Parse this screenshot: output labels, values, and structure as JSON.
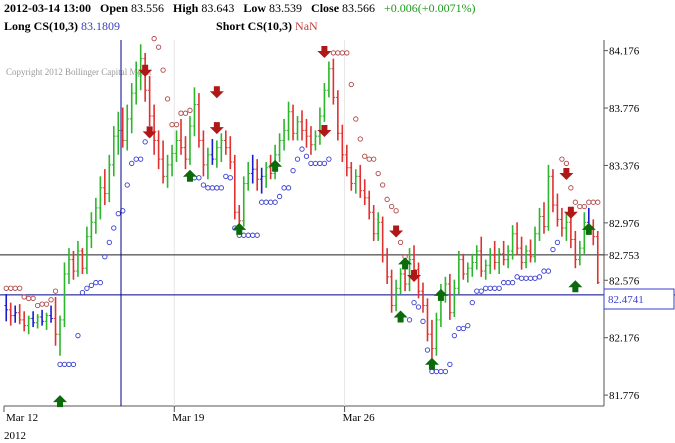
{
  "header": {
    "datetime": "2012-03-14 13:00",
    "open_label": "Open",
    "open_value": "83.556",
    "high_label": "High",
    "high_value": "83.643",
    "low_label": "Low",
    "low_value": "83.539",
    "close_label": "Close",
    "close_value": "83.566",
    "change": "+0.006(+0.0071%)",
    "long_label": "Long CS(10,3)",
    "long_value": "83.1809",
    "short_label": "Short CS(10,3)",
    "short_value": "NaN"
  },
  "watermark": "Copyright 2012 Bollinger Capital Mgmt",
  "y_ticks": [
    "84.176",
    "83.776",
    "83.376",
    "82.976",
    "82.753",
    "82.576",
    "82.176",
    "81.776"
  ],
  "x_ticks": [
    "Mar 12",
    "Mar 19",
    "Mar 26"
  ],
  "year_label": "2012",
  "current_price_label": "82.4741",
  "colors": {
    "bar_up": "#2db52d",
    "bar_down": "#e03030",
    "bar_neutral": "#1a1ad0",
    "long_stop_dots": "#3a3fcf",
    "short_stop_dots": "#b04848",
    "buy_arrow": "#0b6b0b",
    "sell_arrow": "#b01818",
    "crosshair": "#00008b"
  },
  "chart_data": {
    "type": "ohlc",
    "y_range": [
      81.7,
      84.25
    ],
    "horizontal_lines": [
      82.753,
      82.4741
    ],
    "bars": [
      [
        82.4,
        82.48,
        82.29,
        82.37
      ],
      [
        82.37,
        82.42,
        82.26,
        82.33
      ],
      [
        82.33,
        82.4,
        82.28,
        82.35
      ],
      [
        82.35,
        82.41,
        82.27,
        82.3
      ],
      [
        82.3,
        82.36,
        82.22,
        82.26
      ],
      [
        82.26,
        82.33,
        82.2,
        82.31
      ],
      [
        82.31,
        82.36,
        82.25,
        82.28
      ],
      [
        82.28,
        82.34,
        82.24,
        82.32
      ],
      [
        82.32,
        82.37,
        82.26,
        82.29
      ],
      [
        82.29,
        82.35,
        82.23,
        82.33
      ],
      [
        82.33,
        82.4,
        82.28,
        82.31
      ],
      [
        82.31,
        82.46,
        82.12,
        82.2
      ],
      [
        82.2,
        82.33,
        82.05,
        82.3
      ],
      [
        82.3,
        82.7,
        82.25,
        82.62
      ],
      [
        82.62,
        82.8,
        82.55,
        82.72
      ],
      [
        82.72,
        82.78,
        82.58,
        82.64
      ],
      [
        82.64,
        82.85,
        82.6,
        82.78
      ],
      [
        82.78,
        82.8,
        82.62,
        82.66
      ],
      [
        82.66,
        82.95,
        82.62,
        82.88
      ],
      [
        82.88,
        83.05,
        82.8,
        82.98
      ],
      [
        82.98,
        83.15,
        82.9,
        83.08
      ],
      [
        83.08,
        83.3,
        83.0,
        83.22
      ],
      [
        83.22,
        83.35,
        83.1,
        83.18
      ],
      [
        83.18,
        83.45,
        83.12,
        83.38
      ],
      [
        83.38,
        83.65,
        83.3,
        83.58
      ],
      [
        83.58,
        83.75,
        83.45,
        83.62
      ],
      [
        83.62,
        83.78,
        83.5,
        83.55
      ],
      [
        83.55,
        83.8,
        83.48,
        83.7
      ],
      [
        83.7,
        83.95,
        83.6,
        83.88
      ],
      [
        83.88,
        84.1,
        83.8,
        84.02
      ],
      [
        84.02,
        84.22,
        83.9,
        84.12
      ],
      [
        84.12,
        84.16,
        83.82,
        83.9
      ],
      [
        83.9,
        84.0,
        83.65,
        83.72
      ],
      [
        83.72,
        83.8,
        83.45,
        83.55
      ],
      [
        83.55,
        83.62,
        83.35,
        83.42
      ],
      [
        83.42,
        83.55,
        83.25,
        83.3
      ],
      [
        83.3,
        83.45,
        83.22,
        83.38
      ],
      [
        83.38,
        83.52,
        83.3,
        83.46
      ],
      [
        83.46,
        83.62,
        83.4,
        83.55
      ],
      [
        83.55,
        83.7,
        83.45,
        83.5
      ],
      [
        83.5,
        83.58,
        83.35,
        83.42
      ],
      [
        83.42,
        83.72,
        83.38,
        83.65
      ],
      [
        83.65,
        83.92,
        83.58,
        83.8
      ],
      [
        83.8,
        83.88,
        83.5,
        83.55
      ],
      [
        83.55,
        83.62,
        83.3,
        83.38
      ],
      [
        83.38,
        83.5,
        83.28,
        83.45
      ],
      [
        83.45,
        83.56,
        83.38,
        83.42
      ],
      [
        83.42,
        83.55,
        83.36,
        83.5
      ],
      [
        83.5,
        83.6,
        83.4,
        83.55
      ],
      [
        83.55,
        83.62,
        83.45,
        83.5
      ],
      [
        83.5,
        83.58,
        83.35,
        83.4
      ],
      [
        83.4,
        83.45,
        83.0,
        83.05
      ],
      [
        83.05,
        83.1,
        82.95,
        82.99
      ],
      [
        82.99,
        83.3,
        82.95,
        83.25
      ],
      [
        83.25,
        83.4,
        83.2,
        83.32
      ],
      [
        83.32,
        83.45,
        83.25,
        83.35
      ],
      [
        83.35,
        83.42,
        83.2,
        83.28
      ],
      [
        83.28,
        83.36,
        83.18,
        83.3
      ],
      [
        83.3,
        83.4,
        83.22,
        83.36
      ],
      [
        83.36,
        83.45,
        83.28,
        83.32
      ],
      [
        83.32,
        83.52,
        83.28,
        83.45
      ],
      [
        83.45,
        83.6,
        83.4,
        83.55
      ],
      [
        83.55,
        83.7,
        83.48,
        83.62
      ],
      [
        83.62,
        83.82,
        83.55,
        83.75
      ],
      [
        83.75,
        83.8,
        83.55,
        83.6
      ],
      [
        83.6,
        83.72,
        83.55,
        83.68
      ],
      [
        83.68,
        83.76,
        83.55,
        83.62
      ],
      [
        83.62,
        83.7,
        83.5,
        83.58
      ],
      [
        83.58,
        83.65,
        83.45,
        83.52
      ],
      [
        83.52,
        83.62,
        83.48,
        83.58
      ],
      [
        83.58,
        83.78,
        83.52,
        83.72
      ],
      [
        83.72,
        83.95,
        83.68,
        83.9
      ],
      [
        83.9,
        84.1,
        83.85,
        84.05
      ],
      [
        84.05,
        84.12,
        83.8,
        83.85
      ],
      [
        83.85,
        83.9,
        83.55,
        83.6
      ],
      [
        83.6,
        83.66,
        83.4,
        83.45
      ],
      [
        83.45,
        83.52,
        83.3,
        83.36
      ],
      [
        83.36,
        83.4,
        83.2,
        83.25
      ],
      [
        83.25,
        83.35,
        83.18,
        83.3
      ],
      [
        83.3,
        83.38,
        83.15,
        83.2
      ],
      [
        83.2,
        83.28,
        83.1,
        83.15
      ],
      [
        83.15,
        83.2,
        83.0,
        83.05
      ],
      [
        83.05,
        83.1,
        82.85,
        82.9
      ],
      [
        82.9,
        83.05,
        82.85,
        82.98
      ],
      [
        82.98,
        83.02,
        82.7,
        82.75
      ],
      [
        82.75,
        82.8,
        82.55,
        82.6
      ],
      [
        82.6,
        82.65,
        82.35,
        82.4
      ],
      [
        82.4,
        82.58,
        82.36,
        82.52
      ],
      [
        82.52,
        82.66,
        82.48,
        82.62
      ],
      [
        82.62,
        82.7,
        82.5,
        82.55
      ],
      [
        82.55,
        82.8,
        82.5,
        82.72
      ],
      [
        82.72,
        82.82,
        82.6,
        82.65
      ],
      [
        82.65,
        82.7,
        82.45,
        82.5
      ],
      [
        82.5,
        82.56,
        82.35,
        82.4
      ],
      [
        82.4,
        82.45,
        82.15,
        82.2
      ],
      [
        82.2,
        82.3,
        82.0,
        82.1
      ],
      [
        82.1,
        82.35,
        82.05,
        82.3
      ],
      [
        82.3,
        82.55,
        82.25,
        82.48
      ],
      [
        82.48,
        82.6,
        82.42,
        82.55
      ],
      [
        82.55,
        82.62,
        82.3,
        82.35
      ],
      [
        82.35,
        82.58,
        82.32,
        82.52
      ],
      [
        82.52,
        82.78,
        82.48,
        82.72
      ],
      [
        82.72,
        82.76,
        82.58,
        82.62
      ],
      [
        82.62,
        82.7,
        82.56,
        82.66
      ],
      [
        82.66,
        82.76,
        82.6,
        82.7
      ],
      [
        82.7,
        82.82,
        82.65,
        82.78
      ],
      [
        82.78,
        82.88,
        82.6,
        82.64
      ],
      [
        82.64,
        82.72,
        82.58,
        82.68
      ],
      [
        82.68,
        82.8,
        82.62,
        82.75
      ],
      [
        82.75,
        82.85,
        82.65,
        82.7
      ],
      [
        82.7,
        82.8,
        82.62,
        82.76
      ],
      [
        82.76,
        82.85,
        82.68,
        82.72
      ],
      [
        82.72,
        82.82,
        82.66,
        82.78
      ],
      [
        82.78,
        82.96,
        82.72,
        82.9
      ],
      [
        82.9,
        82.98,
        82.75,
        82.8
      ],
      [
        82.8,
        82.88,
        82.65,
        82.7
      ],
      [
        82.7,
        82.82,
        82.66,
        82.78
      ],
      [
        82.78,
        82.86,
        82.7,
        82.74
      ],
      [
        82.74,
        82.95,
        82.7,
        82.9
      ],
      [
        82.9,
        83.08,
        82.85,
        83.02
      ],
      [
        83.02,
        83.12,
        82.9,
        82.95
      ],
      [
        82.95,
        83.38,
        82.92,
        83.3
      ],
      [
        83.3,
        83.35,
        83.05,
        83.1
      ],
      [
        83.1,
        83.18,
        82.95,
        83.0
      ],
      [
        83.0,
        83.08,
        82.88,
        82.94
      ],
      [
        82.94,
        83.05,
        82.85,
        82.98
      ],
      [
        82.98,
        83.02,
        82.8,
        82.86
      ],
      [
        82.86,
        82.92,
        82.66,
        82.72
      ],
      [
        82.72,
        82.85,
        82.68,
        82.8
      ],
      [
        82.8,
        83.05,
        82.76,
        82.98
      ],
      [
        82.98,
        83.08,
        82.9,
        82.95
      ],
      [
        82.95,
        83.0,
        82.82,
        82.88
      ],
      [
        82.88,
        82.92,
        82.55,
        82.56
      ]
    ]
  }
}
